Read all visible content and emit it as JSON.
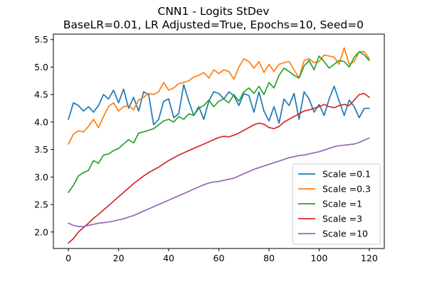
{
  "chart_data": {
    "type": "line",
    "title": "CNN1 - Logits StDev",
    "subtitle": "BaseLR=0.01, LR Adjusted=True, Epochs=10, Seed=0",
    "xlabel": "",
    "ylabel": "",
    "xlim": [
      -6,
      126
    ],
    "ylim": [
      1.7,
      5.6
    ],
    "xticks": [
      0,
      20,
      40,
      60,
      80,
      100,
      120
    ],
    "yticks": [
      2.0,
      2.5,
      3.0,
      3.5,
      4.0,
      4.5,
      5.0,
      5.5
    ],
    "grid": false,
    "legend_position": "lower right",
    "colors": {
      "Scale =0.1": "#1f77b4",
      "Scale =0.3": "#ff7f0e",
      "Scale =1": "#2ca02c",
      "Scale =3": "#d62728",
      "Scale =10": "#9467bd"
    },
    "series": [
      {
        "name": "Scale =0.1",
        "x": [
          0,
          2,
          4,
          6,
          8,
          10,
          12,
          14,
          16,
          18,
          20,
          22,
          24,
          26,
          28,
          30,
          32,
          34,
          36,
          38,
          40,
          42,
          44,
          46,
          48,
          50,
          52,
          54,
          56,
          58,
          60,
          62,
          64,
          66,
          68,
          70,
          72,
          74,
          76,
          78,
          80,
          82,
          84,
          86,
          88,
          90,
          92,
          94,
          96,
          98,
          100,
          102,
          104,
          106,
          108,
          110,
          112,
          114,
          116,
          118,
          120
        ],
        "values": [
          4.05,
          4.35,
          4.3,
          4.2,
          4.28,
          4.18,
          4.3,
          4.5,
          4.42,
          4.58,
          4.35,
          4.6,
          4.25,
          4.45,
          4.2,
          4.55,
          4.5,
          3.95,
          4.05,
          4.38,
          4.42,
          4.08,
          4.15,
          4.68,
          4.38,
          4.12,
          4.28,
          4.05,
          4.38,
          4.55,
          4.52,
          4.42,
          4.55,
          4.48,
          4.3,
          4.52,
          4.48,
          4.18,
          4.55,
          4.2,
          4.02,
          4.28,
          3.98,
          4.42,
          4.3,
          4.52,
          4.05,
          4.55,
          4.42,
          4.18,
          4.32,
          4.12,
          4.42,
          4.65,
          4.38,
          4.12,
          4.4,
          4.28,
          4.08,
          4.25,
          4.25
        ]
      },
      {
        "name": "Scale =0.3",
        "x": [
          0,
          2,
          4,
          6,
          8,
          10,
          12,
          14,
          16,
          18,
          20,
          22,
          24,
          26,
          28,
          30,
          32,
          34,
          36,
          38,
          40,
          42,
          44,
          46,
          48,
          50,
          52,
          54,
          56,
          58,
          60,
          62,
          64,
          66,
          68,
          70,
          72,
          74,
          76,
          78,
          80,
          82,
          84,
          86,
          88,
          90,
          92,
          94,
          96,
          98,
          100,
          102,
          104,
          106,
          108,
          110,
          112,
          114,
          116,
          118,
          120
        ],
        "values": [
          3.6,
          3.78,
          3.84,
          3.82,
          3.92,
          4.05,
          3.9,
          4.1,
          4.28,
          4.35,
          4.2,
          4.28,
          4.3,
          4.22,
          4.4,
          4.45,
          4.52,
          4.5,
          4.55,
          4.72,
          4.58,
          4.62,
          4.7,
          4.72,
          4.75,
          4.82,
          4.85,
          4.9,
          4.8,
          4.95,
          4.88,
          4.95,
          4.92,
          4.78,
          5.0,
          5.15,
          5.1,
          4.98,
          5.1,
          4.9,
          5.05,
          4.92,
          5.05,
          5.08,
          5.1,
          4.95,
          4.8,
          5.12,
          5.15,
          5.08,
          5.1,
          5.22,
          5.2,
          5.18,
          5.05,
          5.35,
          5.05,
          5.1,
          5.28,
          5.28,
          5.15
        ]
      },
      {
        "name": "Scale =1",
        "x": [
          0,
          2,
          4,
          6,
          8,
          10,
          12,
          14,
          16,
          18,
          20,
          22,
          24,
          26,
          28,
          30,
          32,
          34,
          36,
          38,
          40,
          42,
          44,
          46,
          48,
          50,
          52,
          54,
          56,
          58,
          60,
          62,
          64,
          66,
          68,
          70,
          72,
          74,
          76,
          78,
          80,
          82,
          84,
          86,
          88,
          90,
          92,
          94,
          96,
          98,
          100,
          102,
          104,
          106,
          108,
          110,
          112,
          114,
          116,
          118,
          120
        ],
        "values": [
          2.72,
          2.85,
          3.02,
          3.08,
          3.12,
          3.3,
          3.25,
          3.4,
          3.42,
          3.48,
          3.52,
          3.6,
          3.68,
          3.62,
          3.8,
          3.82,
          3.85,
          3.88,
          3.95,
          4.02,
          4.05,
          4.0,
          4.1,
          4.05,
          4.15,
          4.12,
          4.25,
          4.3,
          4.4,
          4.28,
          4.38,
          4.42,
          4.35,
          4.5,
          4.38,
          4.55,
          4.62,
          4.52,
          4.65,
          4.5,
          4.72,
          4.62,
          4.85,
          4.98,
          4.92,
          4.85,
          4.8,
          5.02,
          5.12,
          4.95,
          5.2,
          5.1,
          4.98,
          5.05,
          5.12,
          5.1,
          5.0,
          5.18,
          5.28,
          5.22,
          5.12
        ]
      },
      {
        "name": "Scale =3",
        "x": [
          0,
          2,
          4,
          6,
          8,
          10,
          12,
          14,
          16,
          18,
          20,
          22,
          24,
          26,
          28,
          30,
          32,
          34,
          36,
          38,
          40,
          42,
          44,
          46,
          48,
          50,
          52,
          54,
          56,
          58,
          60,
          62,
          64,
          66,
          68,
          70,
          72,
          74,
          76,
          78,
          80,
          82,
          84,
          86,
          88,
          90,
          92,
          94,
          96,
          98,
          100,
          102,
          104,
          106,
          108,
          110,
          112,
          114,
          116,
          118,
          120
        ],
        "values": [
          1.8,
          1.88,
          2.0,
          2.08,
          2.16,
          2.25,
          2.32,
          2.4,
          2.48,
          2.56,
          2.64,
          2.72,
          2.8,
          2.88,
          2.95,
          3.02,
          3.08,
          3.13,
          3.18,
          3.24,
          3.3,
          3.35,
          3.4,
          3.44,
          3.48,
          3.52,
          3.56,
          3.6,
          3.64,
          3.68,
          3.72,
          3.74,
          3.73,
          3.76,
          3.8,
          3.85,
          3.9,
          3.95,
          3.98,
          3.96,
          3.9,
          3.88,
          3.92,
          4.0,
          4.05,
          4.1,
          4.15,
          4.2,
          4.22,
          4.25,
          4.28,
          4.32,
          4.28,
          4.26,
          4.3,
          4.32,
          4.3,
          4.4,
          4.5,
          4.52,
          4.45
        ]
      },
      {
        "name": "Scale =10",
        "x": [
          0,
          2,
          4,
          6,
          8,
          10,
          12,
          14,
          16,
          18,
          20,
          22,
          24,
          26,
          28,
          30,
          32,
          34,
          36,
          38,
          40,
          42,
          44,
          46,
          48,
          50,
          52,
          54,
          56,
          58,
          60,
          62,
          64,
          66,
          68,
          70,
          72,
          74,
          76,
          78,
          80,
          82,
          84,
          86,
          88,
          90,
          92,
          94,
          96,
          98,
          100,
          102,
          104,
          106,
          108,
          110,
          112,
          114,
          116,
          118,
          120
        ],
        "values": [
          2.16,
          2.12,
          2.1,
          2.1,
          2.12,
          2.14,
          2.16,
          2.17,
          2.18,
          2.2,
          2.22,
          2.24,
          2.27,
          2.3,
          2.34,
          2.38,
          2.42,
          2.46,
          2.5,
          2.54,
          2.58,
          2.62,
          2.66,
          2.7,
          2.74,
          2.78,
          2.82,
          2.86,
          2.89,
          2.91,
          2.92,
          2.94,
          2.96,
          2.98,
          3.02,
          3.06,
          3.1,
          3.14,
          3.17,
          3.2,
          3.23,
          3.26,
          3.29,
          3.32,
          3.35,
          3.37,
          3.39,
          3.4,
          3.42,
          3.44,
          3.46,
          3.49,
          3.52,
          3.55,
          3.57,
          3.58,
          3.59,
          3.6,
          3.63,
          3.67,
          3.71
        ]
      }
    ]
  }
}
